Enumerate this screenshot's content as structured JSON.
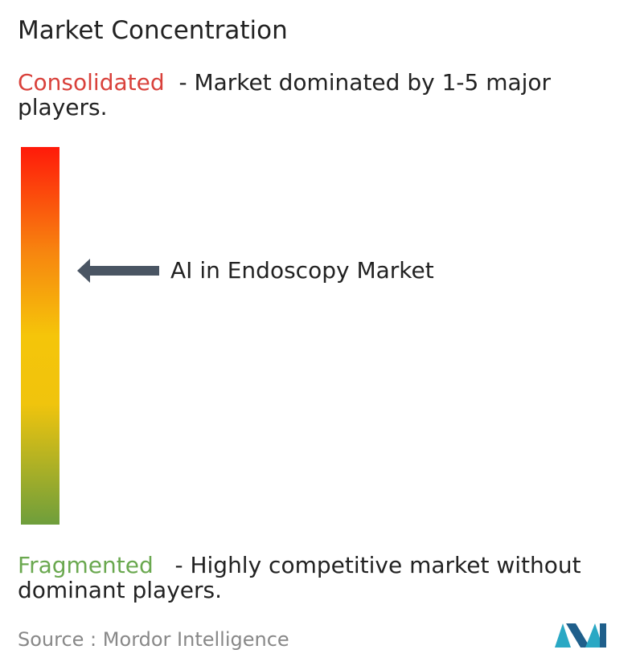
{
  "title": "Market Concentration",
  "consolidated": {
    "label": "Consolidated",
    "description": "- Market dominated by 1-5 major players."
  },
  "marker": {
    "label": "AI in Endoscopy Market"
  },
  "fragmented": {
    "label": "Fragmented",
    "description": "- Highly competitive market without dominant players."
  },
  "source": {
    "label": "Source :",
    "name": "Mordor Intelligence"
  }
}
